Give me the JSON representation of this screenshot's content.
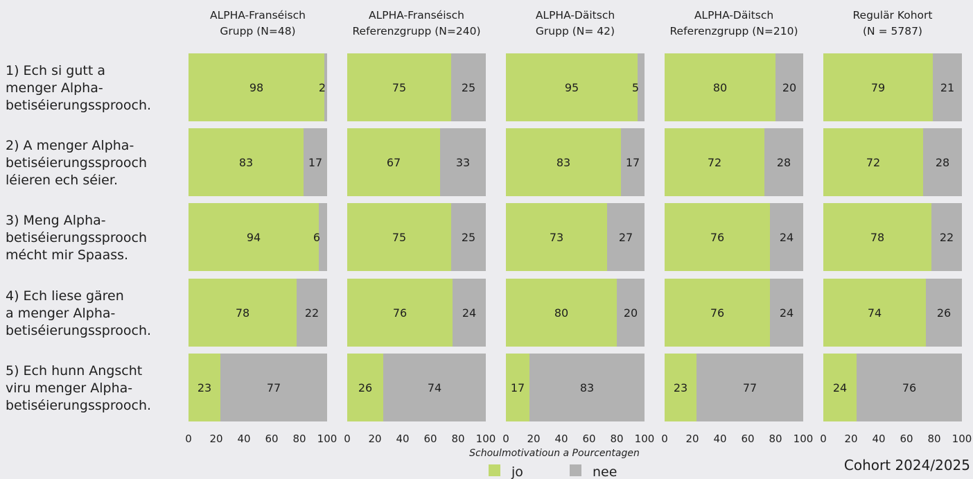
{
  "chart_data": {
    "type": "bar",
    "orientation": "horizontal-stacked-percent",
    "xlabel": "Schoulmotivatioun a Pourcentagen",
    "xlim": [
      0,
      100
    ],
    "xticks": [
      "0",
      "20",
      "40",
      "60",
      "80",
      "100"
    ],
    "footnote": "Cohort 2024/2025",
    "legend_position": "bottom-center",
    "series": [
      {
        "name": "jo",
        "color": "#c0d96e"
      },
      {
        "name": "nee",
        "color": "#b2b2b2"
      }
    ],
    "panels": [
      {
        "title_lines": [
          "ALPHA-Franséisch",
          "Grupp (N=48)"
        ],
        "jo": [
          98,
          83,
          94,
          78,
          23
        ],
        "nee": [
          2,
          17,
          6,
          22,
          77
        ]
      },
      {
        "title_lines": [
          "ALPHA-Franséisch",
          "Referenzgrupp (N=240)"
        ],
        "jo": [
          75,
          67,
          75,
          76,
          26
        ],
        "nee": [
          25,
          33,
          25,
          24,
          74
        ]
      },
      {
        "title_lines": [
          "ALPHA-Däitsch",
          "Grupp (N= 42)"
        ],
        "jo": [
          95,
          83,
          73,
          80,
          17
        ],
        "nee": [
          5,
          17,
          27,
          20,
          83
        ]
      },
      {
        "title_lines": [
          "ALPHA-Däitsch",
          "Referenzgrupp (N=210)"
        ],
        "jo": [
          80,
          72,
          76,
          76,
          23
        ],
        "nee": [
          20,
          28,
          24,
          24,
          77
        ]
      },
      {
        "title_lines": [
          "Regulär Kohort",
          "(N = 5787)"
        ],
        "jo": [
          79,
          72,
          78,
          74,
          24
        ],
        "nee": [
          21,
          28,
          22,
          26,
          76
        ]
      }
    ],
    "categories": [
      [
        "1) Ech si gutt a",
        "menger Alpha-",
        "betiséierungssprooch."
      ],
      [
        "2) A menger Alpha-",
        "betiséierungssprooch",
        "léieren ech séier."
      ],
      [
        "3) Meng Alpha-",
        "betiséierungssprooch",
        "mécht mir Spaass."
      ],
      [
        "4) Ech liese gären",
        "a menger Alpha-",
        "betiséierungssprooch."
      ],
      [
        "5) Ech hunn Angscht",
        "viru menger Alpha-",
        "betiséierungssprooch."
      ]
    ]
  }
}
